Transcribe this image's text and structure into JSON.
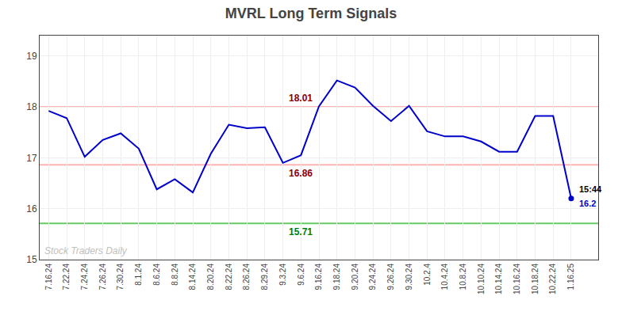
{
  "chart_data": {
    "type": "line",
    "title": "MVRL Long Term Signals",
    "categories": [
      "7.16.24",
      "7.22.24",
      "7.24.24",
      "7.26.24",
      "7.30.24",
      "8.1.24",
      "8.6.24",
      "8.8.24",
      "8.14.24",
      "8.20.24",
      "8.22.24",
      "8.26.24",
      "8.29.24",
      "9.3.24",
      "9.6.24",
      "9.16.24",
      "9.18.24",
      "9.20.24",
      "9.24.24",
      "9.26.24",
      "9.30.24",
      "10.2.4",
      "10.4.24",
      "10.8.24",
      "10.10.24",
      "10.14.24",
      "10.16.24",
      "10.18.24",
      "10.22.24",
      "1.16.25"
    ],
    "values": [
      17.92,
      17.78,
      17.02,
      17.35,
      17.48,
      17.18,
      16.38,
      16.58,
      16.32,
      17.08,
      17.65,
      17.58,
      17.6,
      16.9,
      17.05,
      18.01,
      18.52,
      18.38,
      18.02,
      17.72,
      18.02,
      17.52,
      17.42,
      17.42,
      17.32,
      17.12,
      17.12,
      17.82,
      17.82,
      16.2
    ],
    "color": "#0000cc",
    "ylim": [
      15.0,
      19.4
    ],
    "yticks": [
      15,
      16,
      17,
      18,
      19
    ],
    "grid": true,
    "hlines": [
      {
        "value": 18.0,
        "color": "#ffb3b3",
        "text": "18.01",
        "text_color": "#8b0000"
      },
      {
        "value": 16.86,
        "color": "#ffb3b3",
        "text": "16.86",
        "text_color": "#8b0000"
      },
      {
        "value": 15.71,
        "color": "#66cc66",
        "text": "15.71",
        "text_color": "#008000"
      }
    ],
    "last_point": {
      "marker": "circle",
      "color": "#0000cc",
      "time_label": "15:44",
      "value_label": "16.2"
    },
    "watermark": {
      "text": "Stock Traders Daily",
      "color": "#c0c0c0"
    }
  }
}
